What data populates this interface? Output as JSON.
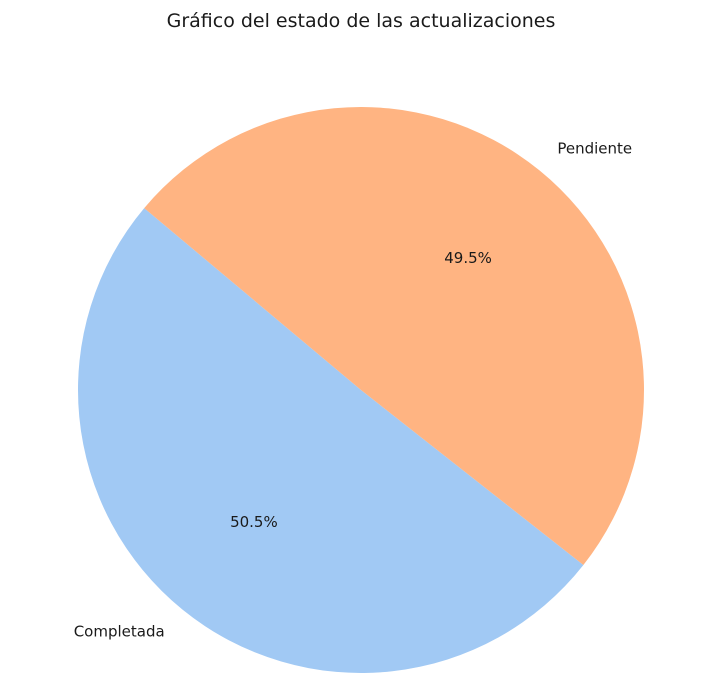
{
  "chart_data": {
    "type": "pie",
    "title": "Gráfico del estado de las actualizaciones",
    "labels": [
      "Completada",
      "Pendiente"
    ],
    "values": [
      50.5,
      49.5
    ],
    "percent_labels": [
      "50.5%",
      "49.5%"
    ],
    "colors": [
      "#a1c9f4",
      "#ffb482"
    ],
    "start_angle_deg": 140,
    "direction": "counterclockwise"
  }
}
